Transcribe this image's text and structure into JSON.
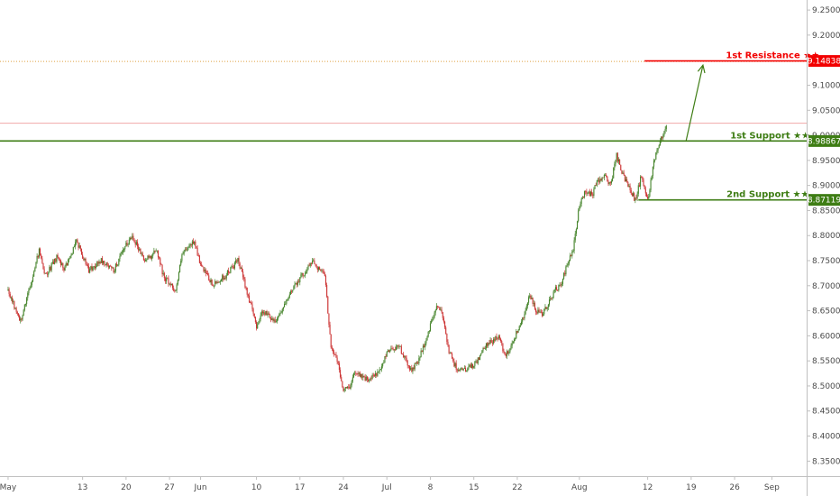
{
  "chart_data": {
    "type": "candlestick",
    "x_ticks": [
      {
        "label": "May",
        "day": 0
      },
      {
        "label": "13",
        "day": 12
      },
      {
        "label": "20",
        "day": 19
      },
      {
        "label": "27",
        "day": 26
      },
      {
        "label": "Jun",
        "day": 31
      },
      {
        "label": "10",
        "day": 40
      },
      {
        "label": "17",
        "day": 47
      },
      {
        "label": "24",
        "day": 54
      },
      {
        "label": "Jul",
        "day": 61
      },
      {
        "label": "8",
        "day": 68
      },
      {
        "label": "15",
        "day": 75
      },
      {
        "label": "22",
        "day": 82
      },
      {
        "label": "Aug",
        "day": 92
      },
      {
        "label": "12",
        "day": 103
      },
      {
        "label": "19",
        "day": 110
      },
      {
        "label": "26",
        "day": 117
      },
      {
        "label": "Sep",
        "day": 123
      }
    ],
    "y_ticks": [
      "9.25000",
      "9.20000",
      "9.15000",
      "9.10000",
      "9.05000",
      "9.00000",
      "8.95000",
      "8.90000",
      "8.85000",
      "8.80000",
      "8.75000",
      "8.70000",
      "8.65000",
      "8.60000",
      "8.55000",
      "8.50000",
      "8.45000",
      "8.40000",
      "8.35000"
    ],
    "ylim": [
      8.32,
      9.27
    ],
    "xlim_days": [
      -1.3,
      128.6
    ],
    "price_path": [
      [
        0,
        8.69
      ],
      [
        2,
        8.63
      ],
      [
        4,
        8.72
      ],
      [
        5,
        8.77
      ],
      [
        6,
        8.72
      ],
      [
        8,
        8.76
      ],
      [
        9,
        8.73
      ],
      [
        11,
        8.79
      ],
      [
        13,
        8.73
      ],
      [
        15,
        8.75
      ],
      [
        17,
        8.73
      ],
      [
        19,
        8.78
      ],
      [
        20,
        8.8
      ],
      [
        22,
        8.75
      ],
      [
        24,
        8.77
      ],
      [
        25,
        8.72
      ],
      [
        27,
        8.69
      ],
      [
        28,
        8.76
      ],
      [
        30,
        8.79
      ],
      [
        31,
        8.74
      ],
      [
        33,
        8.7
      ],
      [
        35,
        8.72
      ],
      [
        37,
        8.75
      ],
      [
        38,
        8.71
      ],
      [
        40,
        8.62
      ],
      [
        41,
        8.65
      ],
      [
        43,
        8.63
      ],
      [
        45,
        8.67
      ],
      [
        46,
        8.7
      ],
      [
        48,
        8.73
      ],
      [
        49,
        8.75
      ],
      [
        51,
        8.72
      ],
      [
        52,
        8.58
      ],
      [
        53,
        8.55
      ],
      [
        54,
        8.49
      ],
      [
        55,
        8.5
      ],
      [
        56,
        8.53
      ],
      [
        58,
        8.51
      ],
      [
        60,
        8.53
      ],
      [
        61,
        8.57
      ],
      [
        63,
        8.58
      ],
      [
        64,
        8.55
      ],
      [
        65,
        8.53
      ],
      [
        66,
        8.55
      ],
      [
        67,
        8.58
      ],
      [
        68,
        8.62
      ],
      [
        69,
        8.66
      ],
      [
        70,
        8.64
      ],
      [
        71,
        8.57
      ],
      [
        72,
        8.54
      ],
      [
        73,
        8.53
      ],
      [
        75,
        8.54
      ],
      [
        77,
        8.58
      ],
      [
        79,
        8.6
      ],
      [
        80,
        8.56
      ],
      [
        81,
        8.58
      ],
      [
        83,
        8.64
      ],
      [
        84,
        8.68
      ],
      [
        85,
        8.65
      ],
      [
        86,
        8.64
      ],
      [
        88,
        8.69
      ],
      [
        89,
        8.7
      ],
      [
        90,
        8.74
      ],
      [
        91,
        8.77
      ],
      [
        92,
        8.86
      ],
      [
        93,
        8.89
      ],
      [
        94,
        8.88
      ],
      [
        95,
        8.91
      ],
      [
        96,
        8.92
      ],
      [
        97,
        8.9
      ],
      [
        98,
        8.96
      ],
      [
        99,
        8.92
      ],
      [
        100,
        8.9
      ],
      [
        101,
        8.87
      ],
      [
        102,
        8.92
      ],
      [
        103,
        8.87
      ],
      [
        104,
        8.95
      ],
      [
        105,
        8.99
      ],
      [
        106,
        9.02
      ]
    ],
    "candle_seed": 20240519,
    "current_price": 9.025,
    "levels": [
      {
        "name": "1st Resistance",
        "stars": "★★",
        "value": 9.14838,
        "value_label": "9.14838",
        "color": "#f20000",
        "line_from_day": 102.5,
        "text_day": 115.6
      },
      {
        "name": "1st Support",
        "stars": "★★",
        "value": 8.98867,
        "value_label": "8.98867",
        "color": "#3e7d14",
        "line_from_day": -1.3,
        "text_day": 116.3
      },
      {
        "name": "2nd Support",
        "stars": "★★",
        "value": 8.87119,
        "value_label": "8.87119",
        "color": "#3e7d14",
        "line_from_day": 101.5,
        "text_day": 115.7
      }
    ],
    "arrow": {
      "from_day": 109.2,
      "from_value": 8.99,
      "to_day": 111.9,
      "to_value": 9.14,
      "color": "#3e7d14"
    },
    "colors": {
      "up": "#44832a",
      "down": "#cc3434",
      "axis": "#c0c0c0",
      "dotted_resistance": "#e0a040",
      "current_line": "#f0a8a8"
    }
  }
}
